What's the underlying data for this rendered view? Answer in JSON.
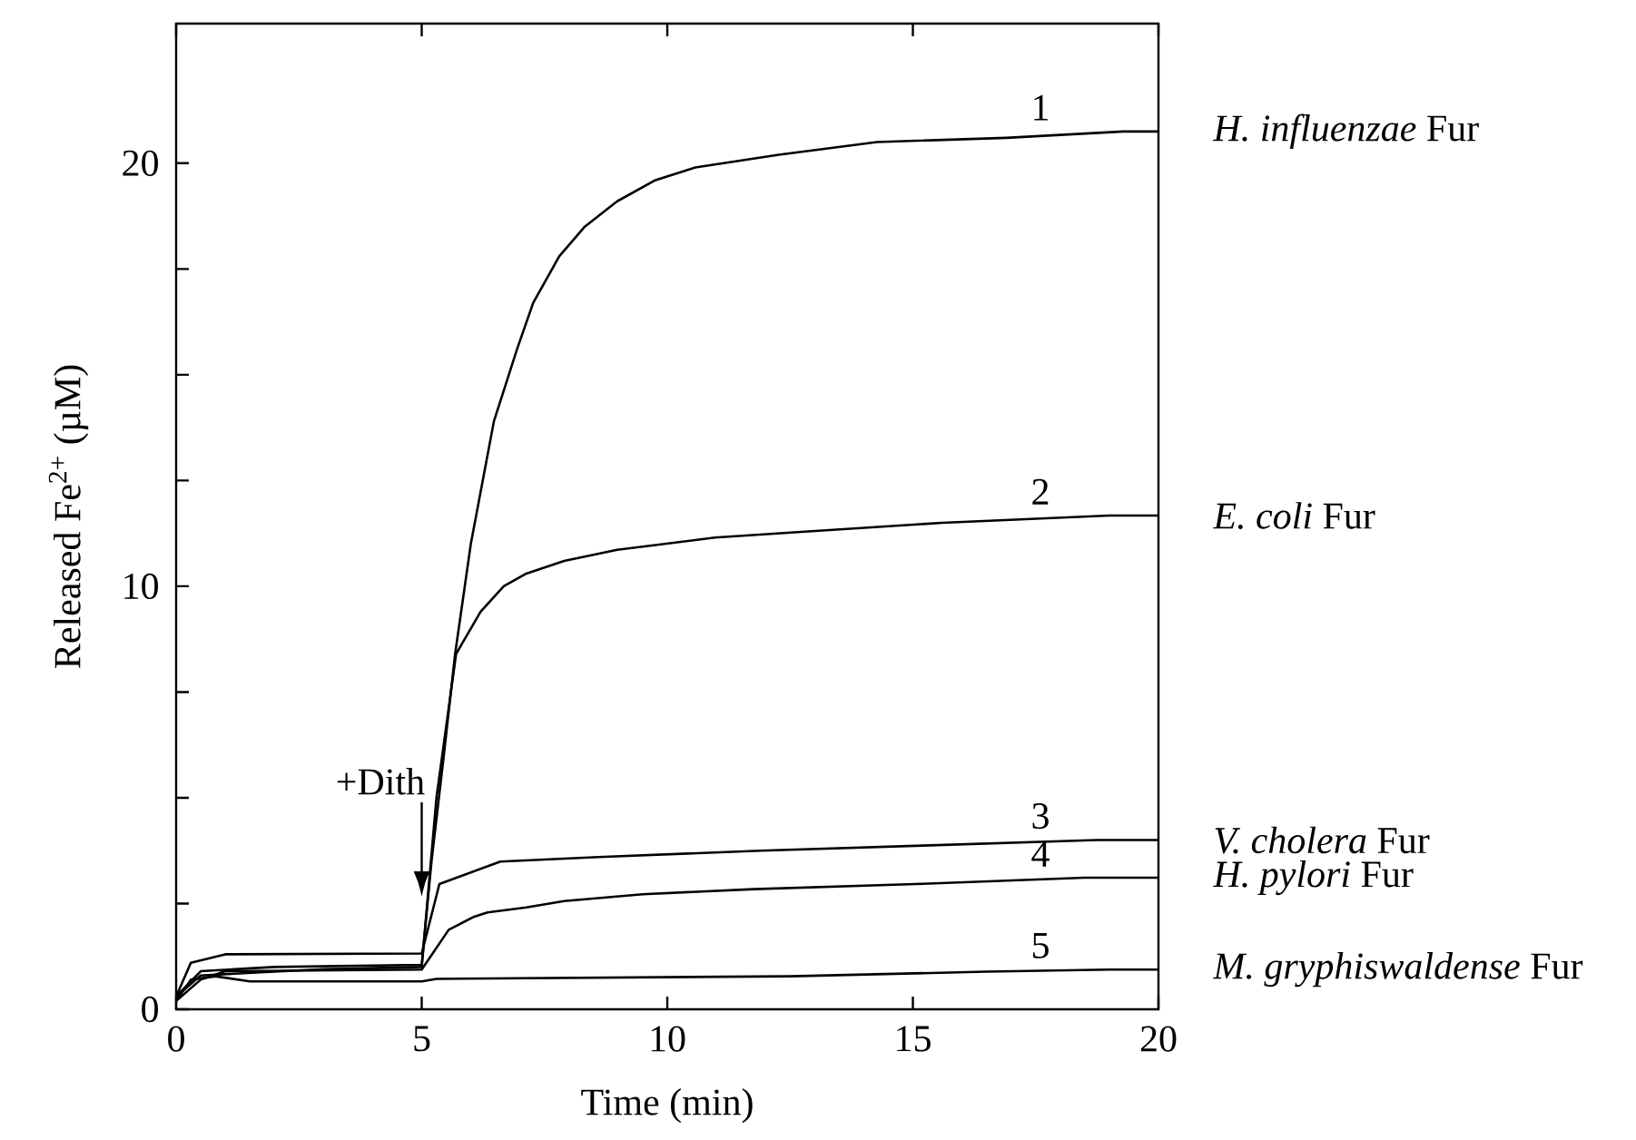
{
  "chart_data": {
    "type": "line",
    "xlabel": "Time (min)",
    "ylabel": "Released Fe$^{2+}$ (µM)",
    "xlim": [
      0,
      20
    ],
    "ylim": [
      0,
      23.3
    ],
    "xticks": [
      0,
      5,
      10,
      15,
      20
    ],
    "yticks": [
      0,
      {
        "value": 2.5,
        "label": null
      },
      {
        "value": 5,
        "label": null
      },
      {
        "value": 7.5,
        "label": null
      },
      10,
      {
        "value": 12.5,
        "label": null
      },
      {
        "value": 15,
        "label": null
      },
      {
        "value": 17.5,
        "label": null
      },
      20
    ],
    "marker": "none",
    "line_style": "solid",
    "series": [
      {
        "name": "*H. influenzae* Fur",
        "color": "#000000",
        "x": [
          0,
          0.5,
          2,
          5,
          5.2,
          5.45,
          5.68,
          6.0,
          6.47,
          6.94,
          7.27,
          7.8,
          8.32,
          8.98,
          9.76,
          10.57,
          12.27,
          14.27,
          16.9,
          19.28,
          20
        ],
        "values": [
          0.3,
          0.9,
          1.0,
          1.05,
          3.5,
          6.0,
          8.4,
          11.0,
          13.9,
          15.6,
          16.7,
          17.8,
          18.5,
          19.1,
          19.6,
          19.9,
          20.2,
          20.5,
          20.6,
          20.75,
          20.75
        ]
      },
      {
        "name": "*E. coli* Fur",
        "color": "#000000",
        "x": [
          0,
          0.5,
          3,
          5,
          5.3,
          5.7,
          6.2,
          6.67,
          7.13,
          7.9,
          8.98,
          10.97,
          12.94,
          15.6,
          19.0,
          20
        ],
        "values": [
          0.3,
          0.8,
          0.95,
          1.0,
          5.0,
          8.4,
          9.4,
          10.0,
          10.3,
          10.6,
          10.86,
          11.15,
          11.3,
          11.5,
          11.67,
          11.67
        ]
      },
      {
        "name": "*V. cholera* Fur",
        "color": "#000000",
        "x": [
          0,
          0.3,
          1,
          5,
          5.36,
          6.6,
          8.6,
          11.9,
          15.2,
          18.75,
          20
        ],
        "values": [
          0.3,
          1.1,
          1.3,
          1.32,
          2.96,
          3.49,
          3.6,
          3.75,
          3.87,
          4.0,
          4.0
        ]
      },
      {
        "name": "*H. pylori* Fur",
        "color": "#000000",
        "x": [
          0,
          0.5,
          1,
          5,
          5.55,
          6.07,
          6.34,
          7.13,
          7.9,
          9.5,
          11.76,
          15.05,
          18.5,
          20
        ],
        "values": [
          0.2,
          0.7,
          0.9,
          0.94,
          1.88,
          2.19,
          2.29,
          2.41,
          2.56,
          2.72,
          2.84,
          2.96,
          3.11,
          3.11
        ]
      },
      {
        "name": "*M. gryphiswaldense* Fur",
        "color": "#000000",
        "x": [
          0,
          0.3,
          0.8,
          1.5,
          5,
          5.3,
          12.5,
          16.5,
          19,
          20
        ],
        "values": [
          0.2,
          0.7,
          0.78,
          0.66,
          0.66,
          0.72,
          0.78,
          0.89,
          0.94,
          0.94
        ]
      }
    ],
    "ref_lines": [
      {
        "axis": "x",
        "value": 5,
        "label": "+Dith"
      }
    ],
    "annotations": [
      "1",
      "2",
      "3",
      "4",
      "5"
    ]
  }
}
